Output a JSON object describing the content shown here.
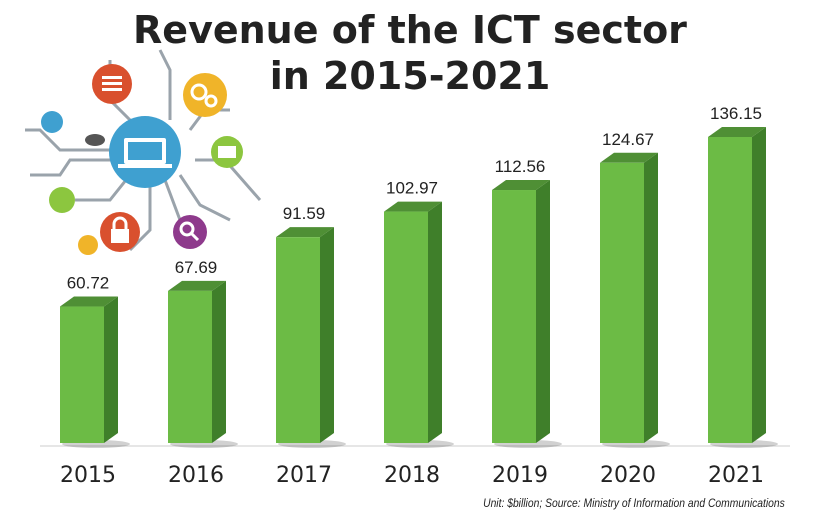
{
  "chart_data": {
    "type": "bar",
    "title": "Revenue of the ICT sector in 2015-2021",
    "title_lines": [
      "Revenue of the ICT sector",
      "in 2015-2021"
    ],
    "categories": [
      "2015",
      "2016",
      "2017",
      "2018",
      "2019",
      "2020",
      "2021"
    ],
    "values": [
      60.72,
      67.69,
      91.59,
      102.97,
      112.56,
      124.67,
      136.15
    ],
    "value_labels": [
      "60.72",
      "67.69",
      "91.59",
      "102.97",
      "112.56",
      "124.67",
      "136.15"
    ],
    "xlabel": "",
    "ylabel": "",
    "ylim": [
      0,
      140
    ],
    "grid": false,
    "style": "3d",
    "colors": {
      "bar_front": "#6cbb45",
      "bar_side": "#3f7f2a",
      "bar_top": "#4f8f35",
      "baseline": "#cccccc"
    },
    "note": "Unit: $billion; Source: Ministry of Information and Communications"
  },
  "illustration": {
    "icons": [
      "laptop-icon",
      "gear-icon",
      "mail-icon",
      "lock-icon",
      "search-icon",
      "wifi-icon",
      "cloud-icon",
      "document-icon",
      "star-icon",
      "rocket-icon"
    ]
  }
}
